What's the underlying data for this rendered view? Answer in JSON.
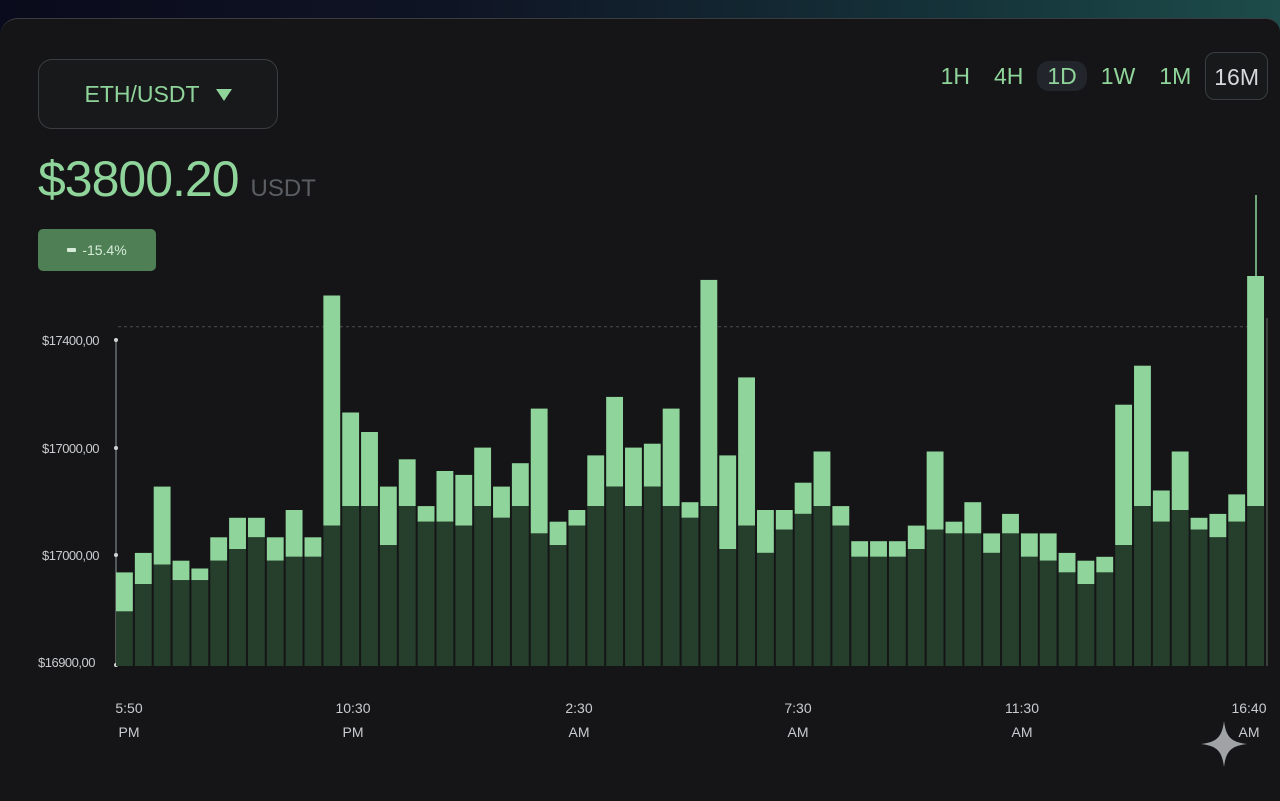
{
  "pair_selector": {
    "label": "ETH/USDT",
    "icon": "caret-down-icon"
  },
  "price": {
    "value": "$3800.20",
    "unit": "USDT"
  },
  "change_badge": {
    "text": "-15.4%",
    "icon": "trend-icon"
  },
  "timeframes": [
    {
      "label": "1H",
      "state": "normal"
    },
    {
      "label": "4H",
      "state": "normal"
    },
    {
      "label": "1D",
      "state": "highlight"
    },
    {
      "label": "1W",
      "state": "normal"
    },
    {
      "label": "1M",
      "state": "normal"
    },
    {
      "label": "16M",
      "state": "boxed"
    }
  ],
  "colors": {
    "accent": "#8fd49a",
    "bar_light": "#8fd49a",
    "bar_dark": "#263f2c",
    "background": "#151517"
  },
  "chart_data": {
    "type": "bar",
    "y_ticks": [
      "$17400,00",
      "$17000,00",
      "$17000,00",
      "$16900,00"
    ],
    "x_ticks": [
      {
        "time": "5:50",
        "period": "PM"
      },
      {
        "time": "10:30",
        "period": "PM"
      },
      {
        "time": "2:30",
        "period": "AM"
      },
      {
        "time": "7:30",
        "period": "AM"
      },
      {
        "time": "11:30",
        "period": "AM"
      },
      {
        "time": "16:40",
        "period": "AM"
      }
    ],
    "ylim": [
      0,
      1
    ],
    "grid": false,
    "reference_line": 0.87,
    "bars": [
      [
        0.24,
        0.14
      ],
      [
        0.29,
        0.21
      ],
      [
        0.46,
        0.26
      ],
      [
        0.27,
        0.22
      ],
      [
        0.25,
        0.22
      ],
      [
        0.33,
        0.27
      ],
      [
        0.38,
        0.3
      ],
      [
        0.38,
        0.33
      ],
      [
        0.33,
        0.27
      ],
      [
        0.4,
        0.28
      ],
      [
        0.33,
        0.28
      ],
      [
        0.95,
        0.36
      ],
      [
        0.65,
        0.41
      ],
      [
        0.6,
        0.41
      ],
      [
        0.46,
        0.31
      ],
      [
        0.53,
        0.41
      ],
      [
        0.41,
        0.37
      ],
      [
        0.5,
        0.37
      ],
      [
        0.49,
        0.36
      ],
      [
        0.56,
        0.41
      ],
      [
        0.46,
        0.38
      ],
      [
        0.52,
        0.41
      ],
      [
        0.66,
        0.34
      ],
      [
        0.37,
        0.31
      ],
      [
        0.4,
        0.36
      ],
      [
        0.54,
        0.41
      ],
      [
        0.69,
        0.46
      ],
      [
        0.56,
        0.41
      ],
      [
        0.57,
        0.46
      ],
      [
        0.66,
        0.41
      ],
      [
        0.42,
        0.38
      ],
      [
        0.99,
        0.41
      ],
      [
        0.54,
        0.3
      ],
      [
        0.74,
        0.36
      ],
      [
        0.4,
        0.29
      ],
      [
        0.4,
        0.35
      ],
      [
        0.47,
        0.39
      ],
      [
        0.55,
        0.41
      ],
      [
        0.41,
        0.36
      ],
      [
        0.32,
        0.28
      ],
      [
        0.32,
        0.28
      ],
      [
        0.32,
        0.28
      ],
      [
        0.36,
        0.3
      ],
      [
        0.55,
        0.35
      ],
      [
        0.37,
        0.34
      ],
      [
        0.42,
        0.34
      ],
      [
        0.34,
        0.29
      ],
      [
        0.39,
        0.34
      ],
      [
        0.34,
        0.28
      ],
      [
        0.34,
        0.27
      ],
      [
        0.29,
        0.24
      ],
      [
        0.27,
        0.21
      ],
      [
        0.28,
        0.24
      ],
      [
        0.67,
        0.31
      ],
      [
        0.77,
        0.41
      ],
      [
        0.45,
        0.37
      ],
      [
        0.55,
        0.4
      ],
      [
        0.38,
        0.35
      ],
      [
        0.39,
        0.33
      ],
      [
        0.44,
        0.37
      ],
      [
        1.0,
        0.41
      ]
    ]
  }
}
